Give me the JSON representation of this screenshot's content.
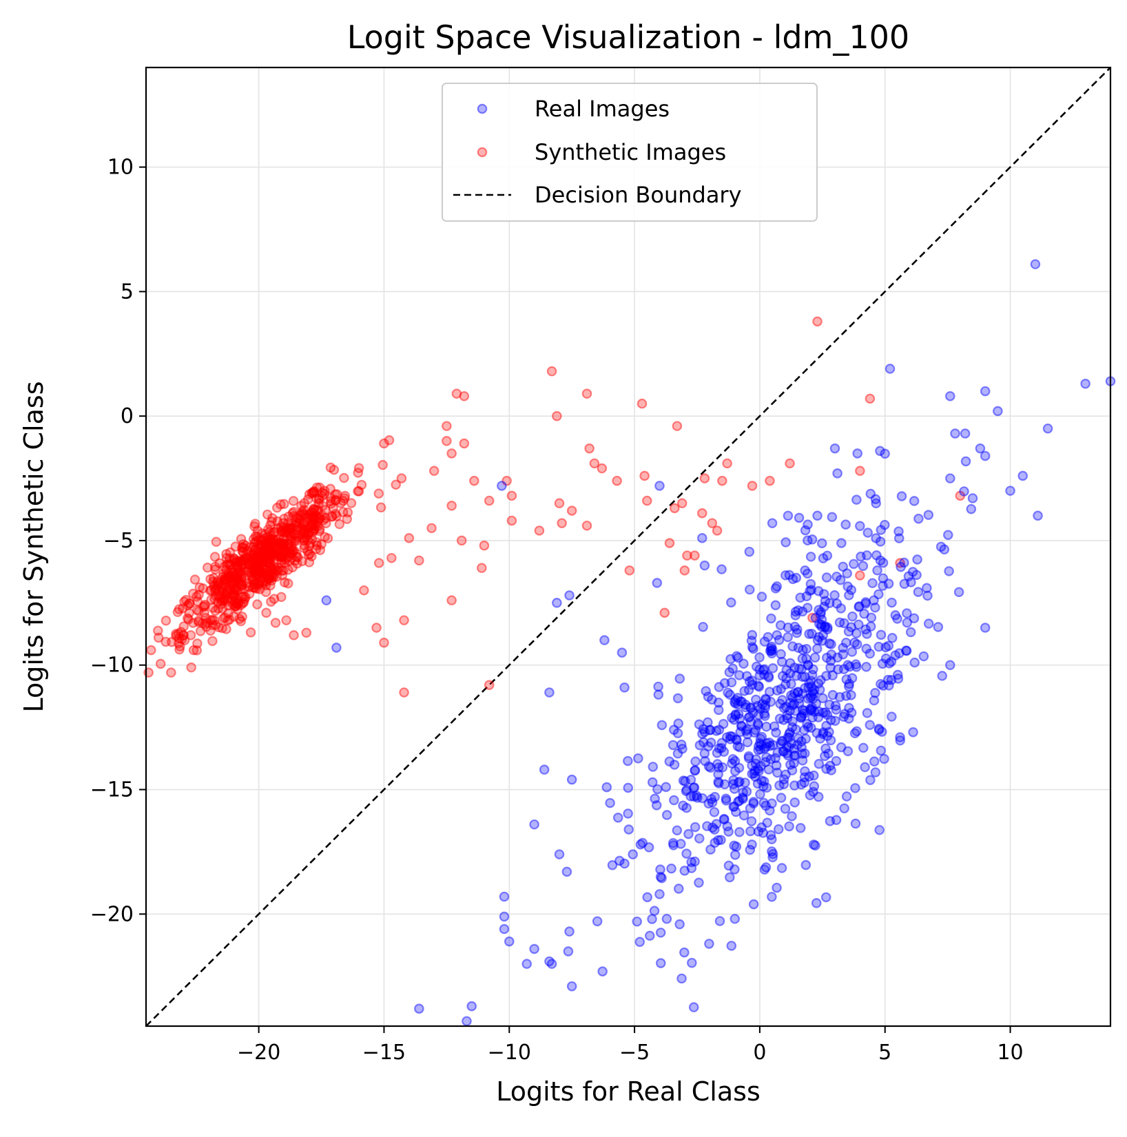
{
  "chart_data": {
    "type": "scatter",
    "title": "Logit Space Visualization - ldm_100",
    "xlabel": "Logits for Real Class",
    "ylabel": "Logits for Synthetic Class",
    "xlim": [
      -24.5,
      14.0
    ],
    "ylim": [
      -24.5,
      14.0
    ],
    "xticks": [
      -20,
      -15,
      -10,
      -5,
      0,
      5,
      10
    ],
    "yticks": [
      -20,
      -15,
      -10,
      -5,
      0,
      5,
      10
    ],
    "xtick_labels": [
      "−20",
      "−15",
      "−10",
      "−5",
      "0",
      "5",
      "10"
    ],
    "ytick_labels": [
      "−20",
      "−15",
      "−10",
      "−5",
      "0",
      "5",
      "10"
    ],
    "grid": true,
    "legend_position": "top-center",
    "series": [
      {
        "name": "Real Images",
        "color": "#0000ff",
        "alpha": 0.3,
        "cluster": {
          "n": 750,
          "center": [
            1.0,
            -12.0
          ],
          "spread_major": 4.2,
          "spread_minor": 1.8,
          "axis_slope": 1.6
        },
        "points": [
          [
            11.0,
            6.1
          ],
          [
            5.2,
            1.9
          ],
          [
            13.0,
            1.3
          ],
          [
            14.0,
            1.4
          ],
          [
            9.0,
            1.0
          ],
          [
            7.6,
            0.8
          ],
          [
            9.5,
            0.2
          ],
          [
            11.5,
            -0.5
          ],
          [
            7.8,
            -0.7
          ],
          [
            8.2,
            -0.7
          ],
          [
            3.0,
            -1.3
          ],
          [
            8.8,
            -1.3
          ],
          [
            9.0,
            -1.6
          ],
          [
            4.8,
            -1.4
          ],
          [
            3.9,
            -1.5
          ],
          [
            3.1,
            -2.3
          ],
          [
            -10.3,
            -2.8
          ],
          [
            -4.0,
            -2.8
          ],
          [
            10.5,
            -2.4
          ],
          [
            10.0,
            -3.0
          ],
          [
            8.5,
            -3.3
          ],
          [
            11.1,
            -4.0
          ],
          [
            0.5,
            -4.3
          ],
          [
            2.3,
            -4.0
          ],
          [
            -2.3,
            -4.9
          ],
          [
            -2.2,
            -6.0
          ],
          [
            -4.1,
            -6.7
          ],
          [
            -8.1,
            -7.5
          ],
          [
            -7.6,
            -7.2
          ],
          [
            -17.3,
            -7.4
          ],
          [
            -16.9,
            -9.3
          ],
          [
            -6.2,
            -9.0
          ],
          [
            -5.5,
            -9.5
          ],
          [
            -8.4,
            -11.1
          ],
          [
            -5.4,
            -10.9
          ],
          [
            -8.6,
            -14.2
          ],
          [
            -7.5,
            -14.6
          ],
          [
            -9.0,
            -16.4
          ],
          [
            -8.0,
            -17.6
          ],
          [
            -7.7,
            -18.3
          ],
          [
            -10.2,
            -19.3
          ],
          [
            -10.2,
            -20.1
          ],
          [
            -10.2,
            -20.6
          ],
          [
            -10.0,
            -21.1
          ],
          [
            -9.0,
            -21.4
          ],
          [
            -8.4,
            -21.9
          ],
          [
            -9.3,
            -22.0
          ],
          [
            -8.3,
            -22.0
          ],
          [
            -7.5,
            -22.9
          ],
          [
            -7.6,
            -20.7
          ],
          [
            -13.6,
            -23.8
          ],
          [
            -11.7,
            -24.3
          ],
          [
            -11.5,
            -23.7
          ],
          [
            -4.9,
            -20.3
          ],
          [
            -4.3,
            -20.2
          ],
          [
            -4.0,
            -19.2
          ],
          [
            7.6,
            -10.0
          ],
          [
            9.0,
            -8.5
          ],
          [
            5.6,
            -12.9
          ],
          [
            4.2,
            -14.1
          ]
        ]
      },
      {
        "name": "Synthetic Images",
        "color": "#ff0000",
        "alpha": 0.3,
        "cluster": {
          "n": 700,
          "center": [
            -19.8,
            -5.8
          ],
          "spread_major": 2.2,
          "spread_minor": 0.55,
          "axis_slope": 0.85
        },
        "points": [
          [
            2.3,
            3.8
          ],
          [
            -8.3,
            1.8
          ],
          [
            -6.9,
            0.9
          ],
          [
            -4.7,
            0.5
          ],
          [
            -12.1,
            0.9
          ],
          [
            -11.8,
            0.8
          ],
          [
            -8.1,
            0.0
          ],
          [
            -3.3,
            -0.4
          ],
          [
            4.4,
            0.7
          ],
          [
            -12.5,
            -0.4
          ],
          [
            -11.8,
            -1.1
          ],
          [
            -12.5,
            -1.0
          ],
          [
            -12.3,
            -1.5
          ],
          [
            -15.0,
            -1.1
          ],
          [
            -6.8,
            -1.3
          ],
          [
            -6.6,
            -1.9
          ],
          [
            -1.3,
            -1.9
          ],
          [
            1.2,
            -1.9
          ],
          [
            4.0,
            -2.2
          ],
          [
            -6.3,
            -2.1
          ],
          [
            -2.2,
            -2.5
          ],
          [
            -1.5,
            -2.6
          ],
          [
            -4.6,
            -2.4
          ],
          [
            -5.7,
            -2.6
          ],
          [
            0.4,
            -2.6
          ],
          [
            -0.3,
            -2.8
          ],
          [
            -11.4,
            -2.6
          ],
          [
            -10.1,
            -2.6
          ],
          [
            -9.9,
            -3.2
          ],
          [
            -13.0,
            -2.2
          ],
          [
            -14.3,
            -2.5
          ],
          [
            -10.8,
            -3.4
          ],
          [
            -8.0,
            -3.5
          ],
          [
            -7.5,
            -3.8
          ],
          [
            -4.5,
            -3.4
          ],
          [
            -3.1,
            -3.5
          ],
          [
            -3.4,
            -3.7
          ],
          [
            -2.3,
            -3.9
          ],
          [
            -1.7,
            -4.6
          ],
          [
            -1.9,
            -4.3
          ],
          [
            -6.9,
            -4.4
          ],
          [
            -7.9,
            -4.3
          ],
          [
            -9.9,
            -4.2
          ],
          [
            -12.3,
            -3.6
          ],
          [
            -14.0,
            -4.9
          ],
          [
            -13.1,
            -4.5
          ],
          [
            -11.0,
            -5.2
          ],
          [
            -11.9,
            -5.0
          ],
          [
            -8.8,
            -4.6
          ],
          [
            -2.9,
            -5.6
          ],
          [
            -3.6,
            -5.1
          ],
          [
            -2.6,
            -5.6
          ],
          [
            -5.2,
            -6.2
          ],
          [
            -3.0,
            -6.2
          ],
          [
            -11.1,
            -6.1
          ],
          [
            -13.6,
            -5.8
          ],
          [
            -14.7,
            -5.7
          ],
          [
            -15.2,
            -5.9
          ],
          [
            -15.8,
            -7.0
          ],
          [
            -12.3,
            -7.4
          ],
          [
            -15.3,
            -8.5
          ],
          [
            -15.0,
            -9.1
          ],
          [
            -14.2,
            -8.2
          ],
          [
            -14.2,
            -11.1
          ],
          [
            -3.8,
            -7.9
          ],
          [
            -10.8,
            -10.8
          ],
          [
            2.1,
            -8.1
          ],
          [
            4.0,
            -6.4
          ],
          [
            5.6,
            -5.9
          ],
          [
            8.0,
            -3.2
          ],
          [
            -23.5,
            -10.3
          ],
          [
            -24.4,
            -10.3
          ],
          [
            -24.0,
            -8.9
          ],
          [
            -24.3,
            -9.4
          ],
          [
            -23.0,
            -8.8
          ],
          [
            -22.6,
            -9.4
          ],
          [
            -18.6,
            -8.8
          ],
          [
            -18.1,
            -8.7
          ],
          [
            -18.9,
            -8.2
          ],
          [
            -19.7,
            -7.9
          ]
        ]
      }
    ],
    "reference_line": {
      "name": "Decision Boundary",
      "style": "dashed",
      "color": "#000000",
      "x": [
        -24.5,
        14.0
      ],
      "y": [
        -24.5,
        14.0
      ]
    }
  }
}
